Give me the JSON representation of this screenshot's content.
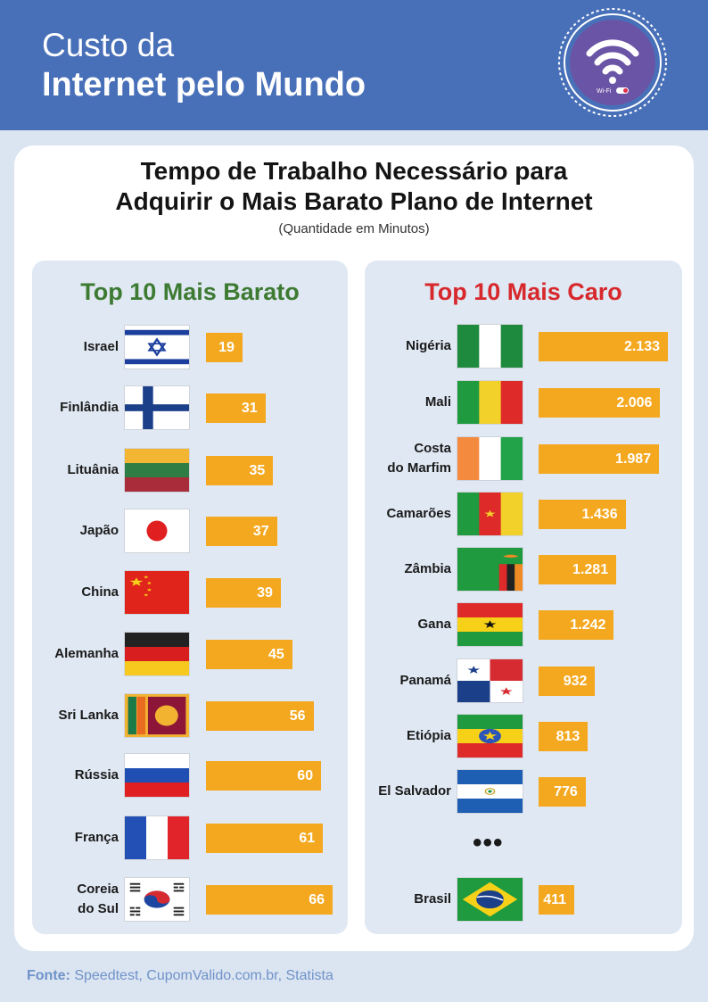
{
  "header": {
    "title_line1": "Custo da",
    "title_line2": "Internet pelo Mundo",
    "badge_text": "Wi-Fi"
  },
  "chart_data": {
    "title_line1": "Tempo de Trabalho Necessário para",
    "title_line2": "Adquirir o Mais Barato Plano de Internet",
    "unit": "(Quantidade em Minutos)",
    "panels": [
      {
        "type": "bar",
        "title": "Top 10 Mais Barato",
        "title_color": "#3d7a32",
        "categories": [
          "Israel",
          "Finlândia",
          "Lituânia",
          "Japão",
          "China",
          "Alemanha",
          "Sri Lanka",
          "Rússia",
          "França",
          "Coreia do Sul"
        ],
        "values": [
          19,
          31,
          35,
          37,
          39,
          45,
          56,
          60,
          61,
          66
        ],
        "value_labels": [
          "19",
          "31",
          "35",
          "37",
          "39",
          "45",
          "56",
          "60",
          "61",
          "66"
        ]
      },
      {
        "type": "bar",
        "title": "Top 10 Mais Caro",
        "title_color": "#d7282c",
        "categories": [
          "Nigéria",
          "Mali",
          "Costa do Marfim",
          "Camarões",
          "Zâmbia",
          "Gana",
          "Panamá",
          "Etiópia",
          "El Salvador",
          "Brasil"
        ],
        "values": [
          2133,
          2006,
          1987,
          1436,
          1281,
          1242,
          932,
          813,
          776,
          411
        ],
        "value_labels": [
          "2.133",
          "2.006",
          "1.987",
          "1.436",
          "1.281",
          "1.242",
          "932",
          "813",
          "776",
          "411"
        ],
        "gap_marker": "•••"
      }
    ],
    "bar_color": "#f4a820"
  },
  "source": {
    "label": "Fonte:",
    "text": "Speedtest, CupomValido.com.br, Statista"
  },
  "colors": {
    "header_bg": "#4870b8",
    "page_bg": "#dbe4f1",
    "panel_bg": "#e0e8f3",
    "source_text": "#6f93c9"
  }
}
